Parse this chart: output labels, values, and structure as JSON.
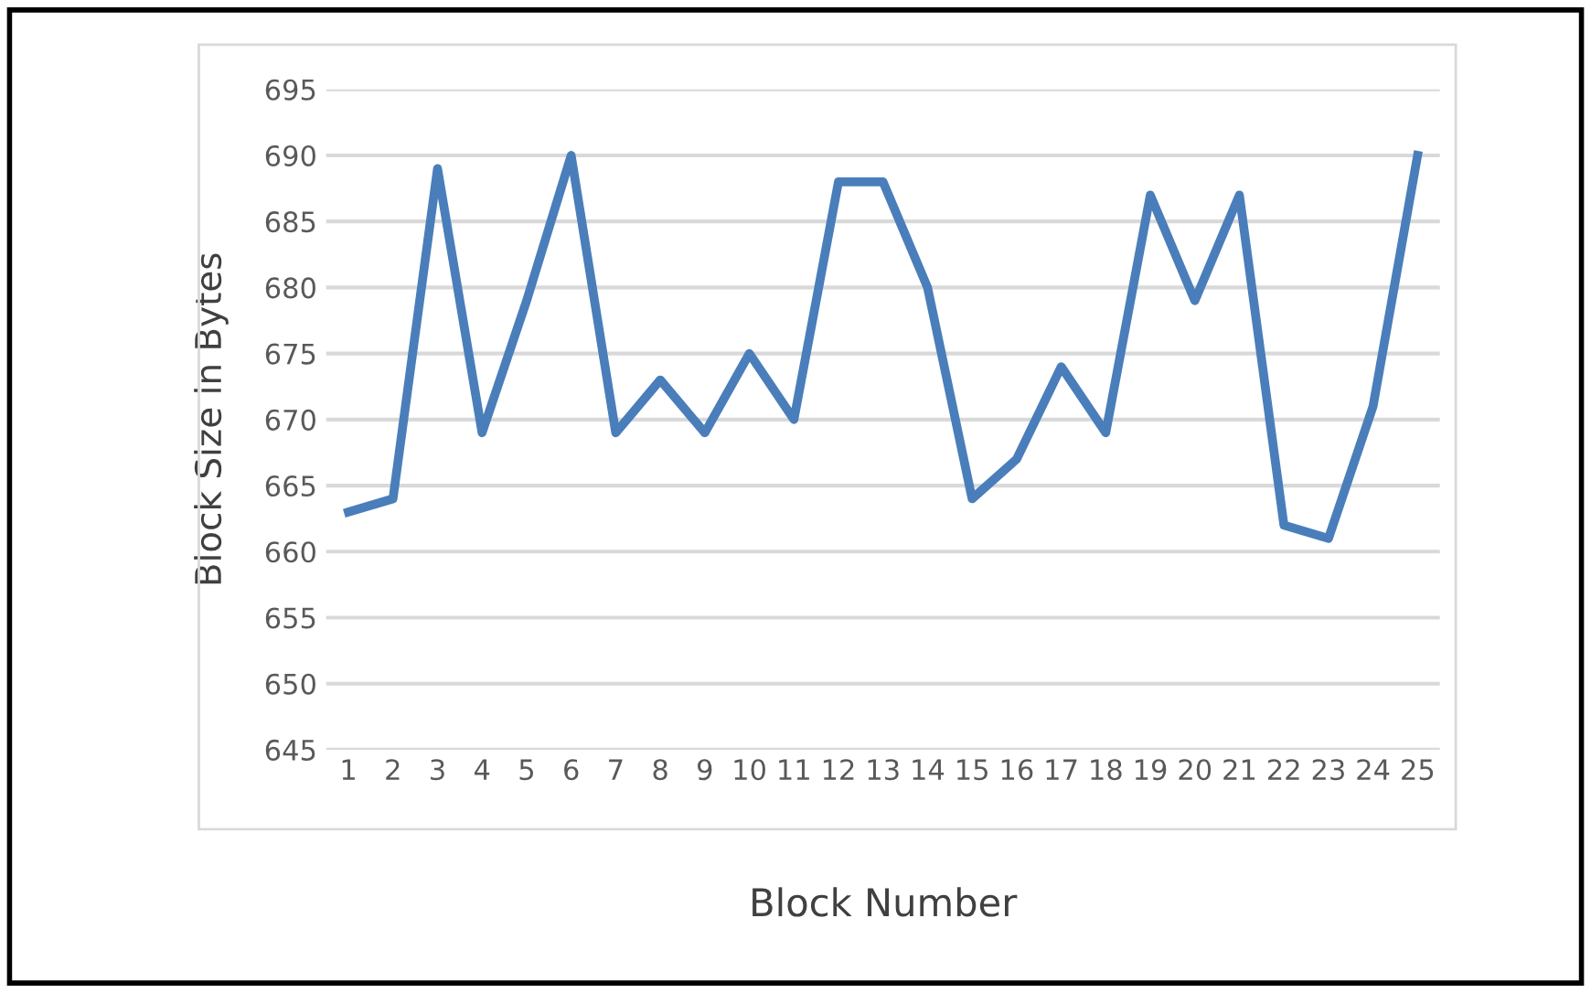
{
  "chart_data": {
    "type": "line",
    "xlabel": "Block Number",
    "ylabel": "Block Size in Bytes",
    "categories": [
      "1",
      "2",
      "3",
      "4",
      "5",
      "6",
      "7",
      "8",
      "9",
      "10",
      "11",
      "12",
      "13",
      "14",
      "15",
      "16",
      "17",
      "18",
      "19",
      "20",
      "21",
      "22",
      "23",
      "24",
      "25"
    ],
    "series": [
      {
        "color": "#4a7ebb",
        "values": [
          663,
          664,
          689,
          669,
          679,
          690,
          669,
          673,
          669,
          675,
          670,
          688,
          688,
          680,
          664,
          667,
          674,
          669,
          687,
          679,
          687,
          662,
          661,
          671,
          690
        ]
      }
    ],
    "ylim": [
      645,
      695
    ],
    "yticks": [
      645,
      650,
      655,
      660,
      665,
      670,
      675,
      680,
      685,
      690,
      695
    ],
    "grid": "y",
    "legend": false,
    "marker": "none",
    "line_style": "solid"
  }
}
